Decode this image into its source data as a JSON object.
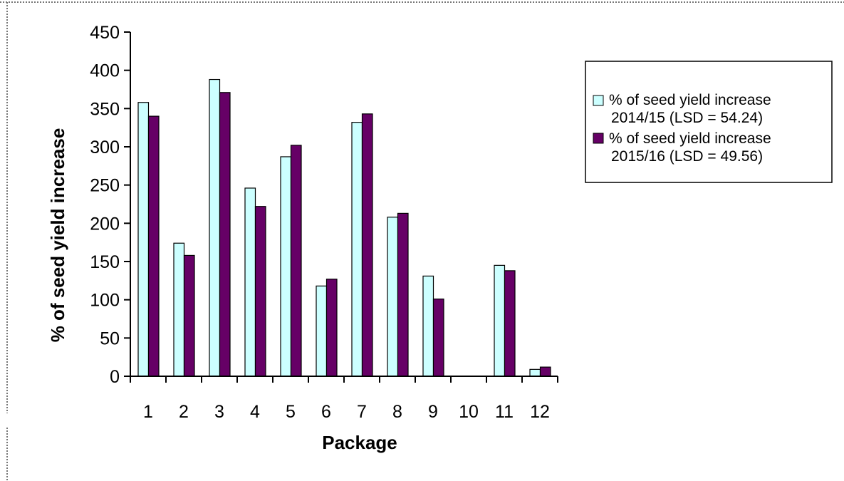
{
  "chart_data": {
    "type": "bar",
    "xlabel": "Package",
    "ylabel": "% of seed yield increase",
    "ylim": [
      0,
      450
    ],
    "yticks": [
      0,
      50,
      100,
      150,
      200,
      250,
      300,
      350,
      400,
      450
    ],
    "grid": false,
    "legend_position": "right",
    "categories": [
      "1",
      "2",
      "3",
      "4",
      "5",
      "6",
      "7",
      "8",
      "9",
      "10",
      "11",
      "12"
    ],
    "series": [
      {
        "name": "% of seed yield increase 2014/15 (LSD = 54.24)",
        "legend_lines": [
          "% of seed yield increase",
          "2014/15 (LSD = 54.24)"
        ],
        "color": "#ccffff",
        "values": [
          358,
          174,
          388,
          246,
          287,
          118,
          332,
          208,
          131,
          0,
          145,
          9
        ]
      },
      {
        "name": "% of seed yield increase 2015/16 (LSD = 49.56)",
        "legend_lines": [
          "% of seed yield increase",
          "2015/16 (LSD = 49.56)"
        ],
        "color": "#660066",
        "values": [
          340,
          158,
          371,
          222,
          302,
          127,
          343,
          213,
          101,
          0,
          138,
          12
        ]
      }
    ]
  }
}
